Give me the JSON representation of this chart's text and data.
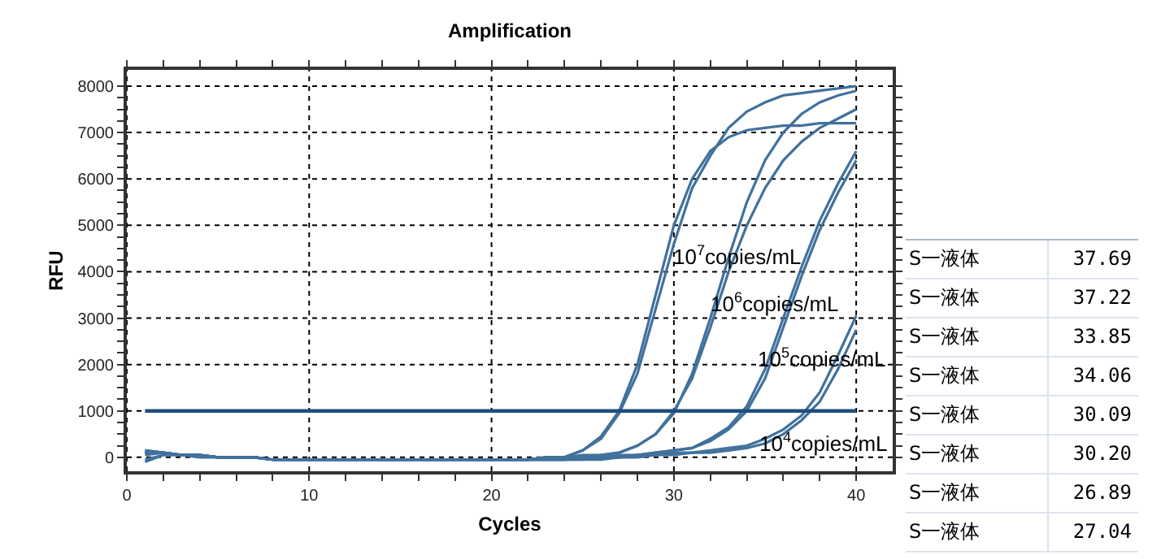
{
  "chart_data": [
    {
      "type": "line",
      "title": "Amplification",
      "xlabel": "Cycles",
      "ylabel": "RFU",
      "xlim": [
        0,
        42
      ],
      "ylim": [
        -300,
        8350
      ],
      "xticks": [
        0,
        {
          "value": 2,
          "label": null
        },
        {
          "value": 4,
          "label": null
        },
        {
          "value": 6,
          "label": null
        },
        {
          "value": 8,
          "label": null
        },
        10,
        {
          "value": 12,
          "label": null
        },
        {
          "value": 14,
          "label": null
        },
        {
          "value": 16,
          "label": null
        },
        {
          "value": 18,
          "label": null
        },
        20,
        {
          "value": 22,
          "label": null
        },
        {
          "value": 24,
          "label": null
        },
        {
          "value": 26,
          "label": null
        },
        {
          "value": 28,
          "label": null
        },
        30,
        {
          "value": 32,
          "label": null
        },
        {
          "value": 34,
          "label": null
        },
        {
          "value": 36,
          "label": null
        },
        {
          "value": 38,
          "label": null
        },
        40
      ],
      "yticks": [
        0,
        {
          "value": 250,
          "label": null
        },
        {
          "value": 500,
          "label": null
        },
        {
          "value": 750,
          "label": null
        },
        1000,
        {
          "value": 1250,
          "label": null
        },
        {
          "value": 1500,
          "label": null
        },
        {
          "value": 1750,
          "label": null
        },
        2000,
        {
          "value": 2250,
          "label": null
        },
        {
          "value": 2500,
          "label": null
        },
        {
          "value": 2750,
          "label": null
        },
        3000,
        {
          "value": 3250,
          "label": null
        },
        {
          "value": 3500,
          "label": null
        },
        {
          "value": 3750,
          "label": null
        },
        4000,
        {
          "value": 4250,
          "label": null
        },
        {
          "value": 4500,
          "label": null
        },
        {
          "value": 4750,
          "label": null
        },
        5000,
        {
          "value": 5250,
          "label": null
        },
        {
          "value": 5500,
          "label": null
        },
        {
          "value": 5750,
          "label": null
        },
        6000,
        {
          "value": 6250,
          "label": null
        },
        {
          "value": 6500,
          "label": null
        },
        {
          "value": 6750,
          "label": null
        },
        7000,
        {
          "value": 7250,
          "label": null
        },
        {
          "value": 7500,
          "label": null
        },
        {
          "value": 7750,
          "label": null
        },
        8000
      ],
      "grid": true,
      "line_style": "solid",
      "marker": "none",
      "x": [
        1,
        2,
        3,
        4,
        5,
        6,
        7,
        8,
        9,
        10,
        11,
        12,
        13,
        14,
        15,
        16,
        17,
        18,
        19,
        20,
        21,
        22,
        23,
        24,
        25,
        26,
        27,
        28,
        29,
        30,
        31,
        32,
        33,
        34,
        35,
        36,
        37,
        38,
        39,
        40
      ],
      "series": [
        {
          "color": "#41719c",
          "values": [
            150,
            100,
            50,
            50,
            0,
            0,
            0,
            -50,
            -50,
            -50,
            -50,
            -50,
            -50,
            -50,
            -50,
            -50,
            -50,
            -50,
            -50,
            -50,
            -50,
            -50,
            0,
            0,
            150,
            450,
            1000,
            2000,
            3500,
            5000,
            6000,
            6600,
            6900,
            7050,
            7100,
            7150,
            7150,
            7200,
            7200,
            7200
          ]
        },
        {
          "color": "#41719c",
          "values": [
            100,
            100,
            50,
            50,
            0,
            0,
            0,
            -50,
            -50,
            -50,
            -50,
            -50,
            -50,
            -50,
            -50,
            -50,
            -50,
            -50,
            -50,
            -50,
            -50,
            -50,
            0,
            0,
            150,
            400,
            950,
            1800,
            3200,
            4600,
            5800,
            6500,
            7100,
            7450,
            7650,
            7800,
            7850,
            7900,
            7950,
            8000
          ]
        },
        {
          "color": "#41719c",
          "values": [
            50,
            100,
            50,
            50,
            0,
            0,
            0,
            -50,
            -50,
            -50,
            -50,
            -50,
            -50,
            -50,
            -50,
            -50,
            -50,
            -50,
            -50,
            -50,
            -50,
            -50,
            0,
            0,
            50,
            50,
            100,
            250,
            500,
            950,
            1800,
            3000,
            4300,
            5500,
            6400,
            7000,
            7400,
            7650,
            7800,
            7900
          ]
        },
        {
          "color": "#41719c",
          "values": [
            -100,
            50,
            50,
            50,
            0,
            0,
            0,
            -50,
            -50,
            -50,
            -50,
            -50,
            -50,
            -50,
            -50,
            -50,
            -50,
            -50,
            -50,
            -50,
            -50,
            -50,
            0,
            0,
            0,
            50,
            100,
            250,
            500,
            1000,
            1700,
            2800,
            4000,
            5000,
            5800,
            6400,
            6800,
            7100,
            7300,
            7500
          ]
        },
        {
          "color": "#41719c",
          "values": [
            150,
            100,
            50,
            50,
            0,
            0,
            0,
            -50,
            -50,
            -50,
            -50,
            -50,
            -50,
            -50,
            -50,
            -50,
            -50,
            -50,
            -50,
            -50,
            -50,
            -50,
            -50,
            -50,
            0,
            0,
            50,
            50,
            100,
            150,
            200,
            400,
            650,
            1100,
            1900,
            3000,
            4100,
            5100,
            5900,
            6600
          ]
        },
        {
          "color": "#41719c",
          "values": [
            100,
            100,
            50,
            50,
            0,
            0,
            0,
            -50,
            -50,
            -50,
            -50,
            -50,
            -50,
            -50,
            -50,
            -50,
            -50,
            -50,
            -50,
            -50,
            -50,
            -50,
            -50,
            -50,
            0,
            0,
            0,
            50,
            100,
            150,
            200,
            350,
            600,
            1000,
            1700,
            2800,
            3900,
            4900,
            5700,
            6400
          ]
        },
        {
          "color": "#41719c",
          "values": [
            100,
            100,
            50,
            50,
            0,
            0,
            0,
            -50,
            -50,
            -50,
            -50,
            -50,
            -50,
            -50,
            -50,
            -50,
            -50,
            -50,
            -50,
            -50,
            -50,
            -50,
            -50,
            -50,
            -50,
            0,
            0,
            50,
            50,
            100,
            100,
            150,
            200,
            250,
            400,
            600,
            900,
            1400,
            2200,
            3050
          ]
        },
        {
          "color": "#41719c",
          "values": [
            -50,
            50,
            50,
            0,
            0,
            0,
            0,
            -50,
            -50,
            -50,
            -50,
            -50,
            -50,
            -50,
            -50,
            -50,
            -50,
            -50,
            -50,
            -50,
            -50,
            -50,
            -50,
            -50,
            -50,
            -50,
            0,
            0,
            50,
            50,
            100,
            100,
            150,
            200,
            300,
            500,
            800,
            1200,
            1900,
            2750
          ]
        }
      ],
      "ref_lines": [
        {
          "axis": "y",
          "value": 1000,
          "color": "#1f4e79"
        }
      ],
      "annotations": [
        "10$^{7}$copies/mL",
        "10$^{6}$copies/mL",
        "10$^{5}$copies/mL",
        "10$^{4}$copies/mL"
      ]
    },
    {
      "type": "other",
      "annotations": [
        "S一液体",
        "37.69",
        "S一液体",
        "37.22",
        "S一液体",
        "33.85",
        "S一液体",
        "34.06",
        "S一液体",
        "30.09",
        "S一液体",
        "30.20",
        "S一液体",
        "26.89",
        "S一液体",
        "27.04"
      ]
    }
  ]
}
